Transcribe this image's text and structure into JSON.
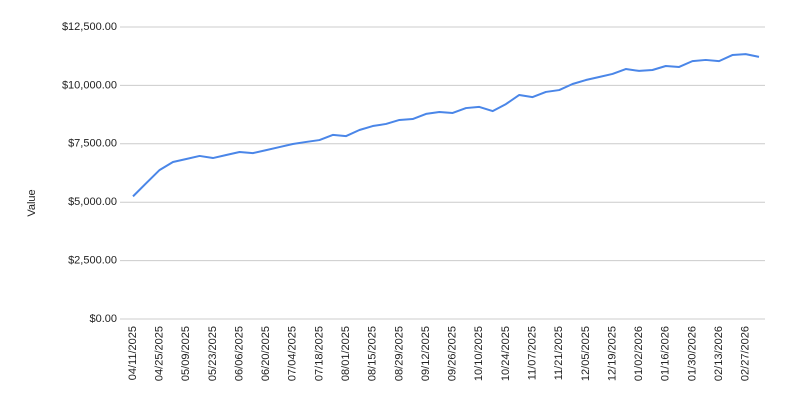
{
  "chart_data": {
    "type": "line",
    "y_label": "Value",
    "categories": [
      "04/11/2025",
      null,
      "04/25/2025",
      null,
      "05/09/2025",
      null,
      "05/23/2025",
      null,
      "06/06/2025",
      null,
      "06/20/2025",
      null,
      "07/04/2025",
      null,
      "07/18/2025",
      null,
      "08/01/2025",
      null,
      "08/15/2025",
      null,
      "08/29/2025",
      null,
      "09/12/2025",
      null,
      "09/26/2025",
      null,
      "10/10/2025",
      null,
      "10/24/2025",
      null,
      "11/07/2025",
      null,
      "11/21/2025",
      null,
      "12/05/2025",
      null,
      "12/19/2025",
      null,
      "01/02/2026",
      null,
      "01/16/2026",
      null,
      "01/30/2026",
      null,
      "02/13/2026",
      null,
      "02/27/2026",
      null
    ],
    "series": [
      {
        "name": "Value",
        "color": "#4a86e8",
        "values": [
          5250,
          5820,
          6380,
          6720,
          6850,
          6980,
          6890,
          7020,
          7150,
          7100,
          7230,
          7360,
          7490,
          7580,
          7660,
          7880,
          7830,
          8090,
          8260,
          8350,
          8520,
          8560,
          8780,
          8860,
          8820,
          9030,
          9080,
          8900,
          9200,
          9590,
          9500,
          9720,
          9800,
          10060,
          10230,
          10360,
          10490,
          10700,
          10620,
          10660,
          10830,
          10790,
          11040,
          11090,
          11040,
          11300,
          11340,
          11220
        ]
      }
    ],
    "ylim": [
      0,
      12500
    ],
    "yticks": [
      {
        "value": 0,
        "label": "$0.00"
      },
      {
        "value": 2500,
        "label": "$2,500.00"
      },
      {
        "value": 5000,
        "label": "$5,000.00"
      },
      {
        "value": 7500,
        "label": "$7,500.00"
      },
      {
        "value": 10000,
        "label": "$10,000.00"
      },
      {
        "value": 12500,
        "label": "$12,500.00"
      }
    ],
    "grid": true
  }
}
